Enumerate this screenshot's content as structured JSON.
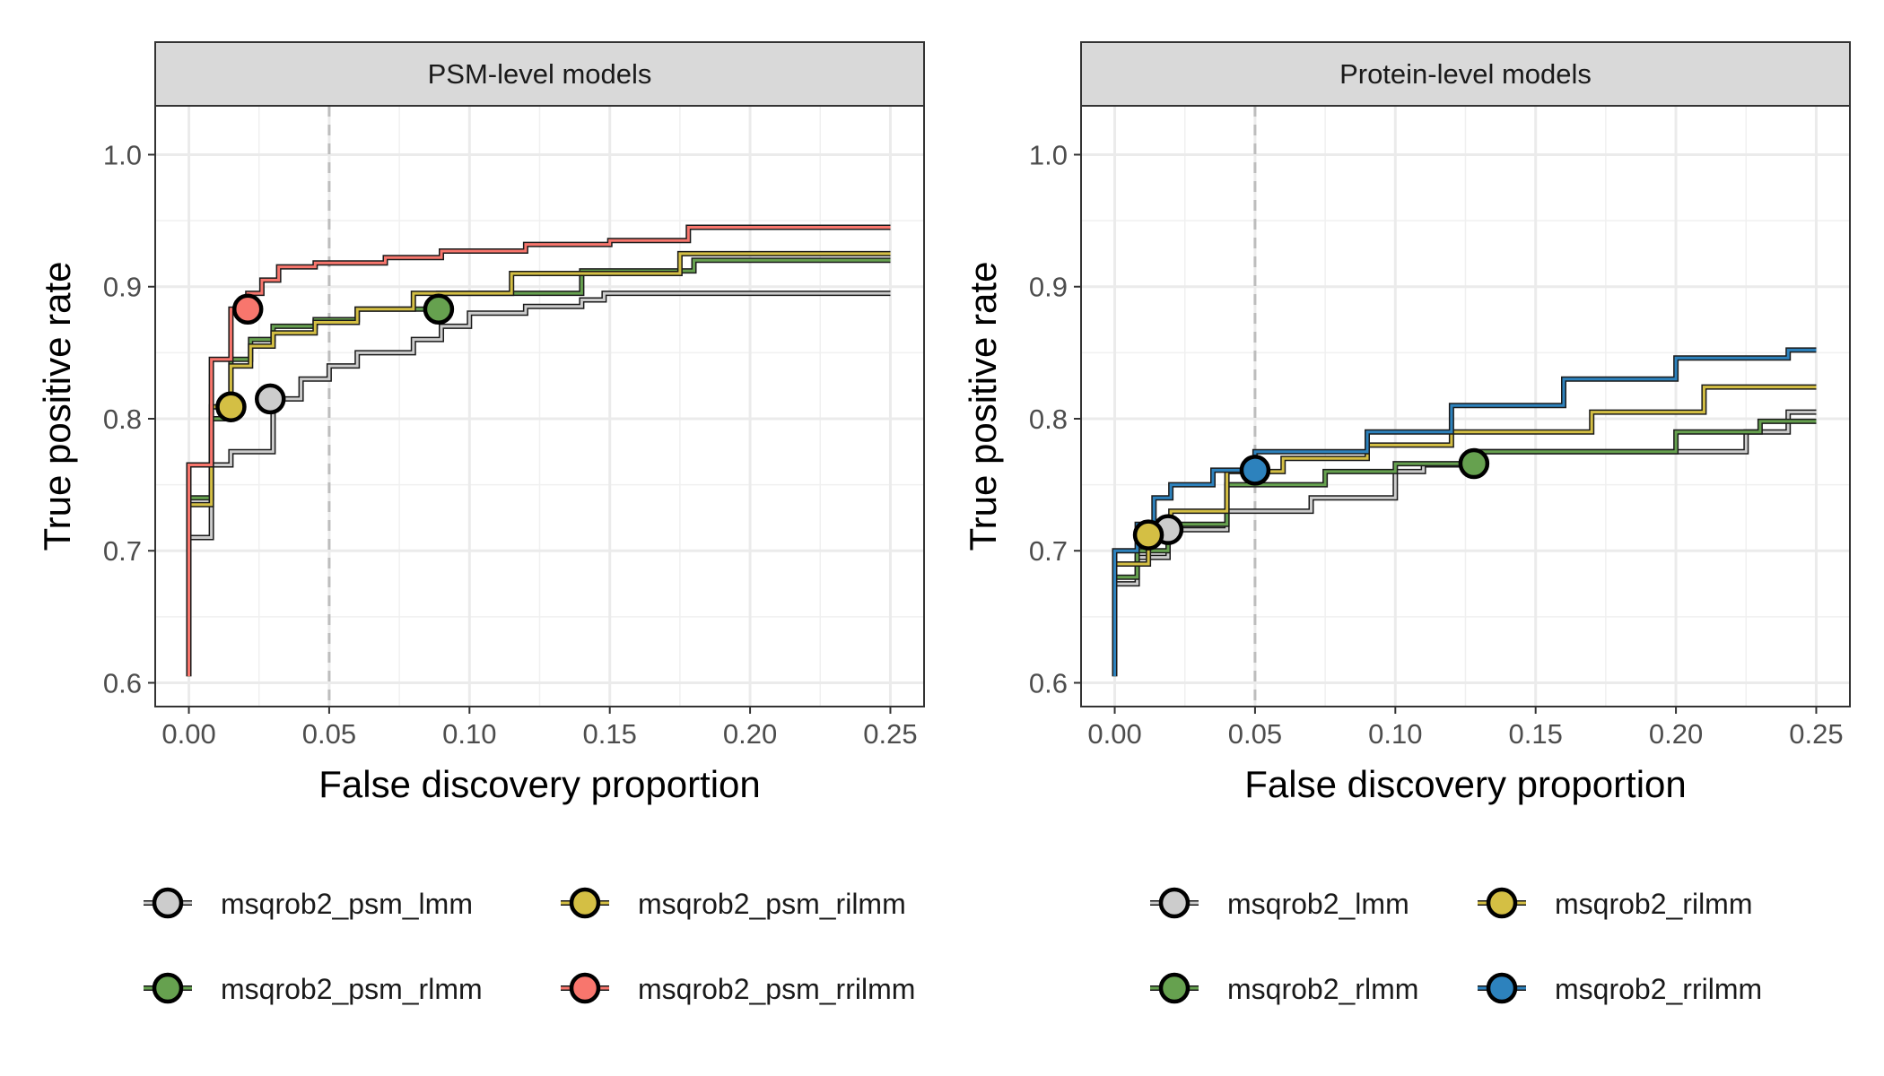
{
  "chart_data": [
    {
      "type": "line",
      "panel_title": "PSM-level models",
      "xlabel": "False discovery proportion",
      "ylabel": "True positive rate",
      "xlim": [
        -0.012,
        0.262
      ],
      "ylim": [
        0.582,
        1.037
      ],
      "xticks": [
        0.0,
        0.05,
        0.1,
        0.15,
        0.2,
        0.25
      ],
      "xtick_labels": [
        "0.00",
        "0.05",
        "0.10",
        "0.15",
        "0.20",
        "0.25"
      ],
      "yticks": [
        0.6,
        0.7,
        0.8,
        0.9,
        1.0
      ],
      "ytick_labels": [
        "0.6",
        "0.7",
        "0.8",
        "0.9",
        "1.0"
      ],
      "reference_line_x": 0.05,
      "grid": true,
      "series": [
        {
          "name": "msqrob2_psm_lmm",
          "color": "#CCCCCC",
          "marker": [
            0.029,
            0.815
          ],
          "x": [
            0.0,
            0.0,
            0.0,
            0.008,
            0.008,
            0.015,
            0.015,
            0.03,
            0.03,
            0.04,
            0.04,
            0.05,
            0.05,
            0.06,
            0.06,
            0.08,
            0.08,
            0.09,
            0.09,
            0.1,
            0.1,
            0.12,
            0.12,
            0.14,
            0.14,
            0.148,
            0.148,
            0.25
          ],
          "y": [
            0.605,
            0.71,
            0.71,
            0.71,
            0.765,
            0.765,
            0.775,
            0.775,
            0.815,
            0.815,
            0.83,
            0.83,
            0.84,
            0.84,
            0.85,
            0.85,
            0.86,
            0.86,
            0.87,
            0.87,
            0.88,
            0.88,
            0.885,
            0.885,
            0.89,
            0.89,
            0.895,
            0.895
          ]
        },
        {
          "name": "msqrob2_psm_rlmm",
          "color": "#66A14F",
          "marker": [
            0.089,
            0.883
          ],
          "x": [
            0.0,
            0.0,
            0.0,
            0.008,
            0.008,
            0.015,
            0.015,
            0.022,
            0.022,
            0.03,
            0.03,
            0.045,
            0.045,
            0.06,
            0.06,
            0.089,
            0.089,
            0.14,
            0.14,
            0.18,
            0.18,
            0.25
          ],
          "y": [
            0.605,
            0.74,
            0.74,
            0.74,
            0.8,
            0.8,
            0.845,
            0.845,
            0.86,
            0.86,
            0.87,
            0.87,
            0.875,
            0.875,
            0.883,
            0.883,
            0.895,
            0.895,
            0.912,
            0.912,
            0.92,
            0.92
          ]
        },
        {
          "name": "msqrob2_psm_rilmm",
          "color": "#D4BF44",
          "marker": [
            0.015,
            0.809
          ],
          "x": [
            0.0,
            0.0,
            0.0,
            0.008,
            0.008,
            0.015,
            0.015,
            0.022,
            0.022,
            0.03,
            0.03,
            0.045,
            0.045,
            0.06,
            0.06,
            0.08,
            0.08,
            0.115,
            0.115,
            0.175,
            0.175,
            0.25
          ],
          "y": [
            0.605,
            0.735,
            0.735,
            0.735,
            0.809,
            0.809,
            0.84,
            0.84,
            0.855,
            0.855,
            0.865,
            0.865,
            0.873,
            0.873,
            0.883,
            0.883,
            0.895,
            0.895,
            0.91,
            0.91,
            0.925,
            0.925
          ]
        },
        {
          "name": "msqrob2_psm_rrilmm",
          "color": "#F8766D",
          "marker": [
            0.021,
            0.883
          ],
          "x": [
            0.0,
            0.0,
            0.0,
            0.008,
            0.008,
            0.015,
            0.015,
            0.021,
            0.021,
            0.026,
            0.026,
            0.032,
            0.032,
            0.045,
            0.045,
            0.07,
            0.07,
            0.09,
            0.09,
            0.12,
            0.12,
            0.15,
            0.15,
            0.178,
            0.178,
            0.25
          ],
          "y": [
            0.605,
            0.765,
            0.765,
            0.765,
            0.845,
            0.845,
            0.883,
            0.883,
            0.895,
            0.895,
            0.905,
            0.905,
            0.915,
            0.915,
            0.918,
            0.918,
            0.922,
            0.922,
            0.927,
            0.927,
            0.932,
            0.932,
            0.935,
            0.935,
            0.945,
            0.945
          ]
        }
      ]
    },
    {
      "type": "line",
      "panel_title": "Protein-level models",
      "xlabel": "False discovery proportion",
      "ylabel": "True positive rate",
      "xlim": [
        -0.012,
        0.262
      ],
      "ylim": [
        0.582,
        1.037
      ],
      "xticks": [
        0.0,
        0.05,
        0.1,
        0.15,
        0.2,
        0.25
      ],
      "xtick_labels": [
        "0.00",
        "0.05",
        "0.10",
        "0.15",
        "0.20",
        "0.25"
      ],
      "yticks": [
        0.6,
        0.7,
        0.8,
        0.9,
        1.0
      ],
      "ytick_labels": [
        "0.6",
        "0.7",
        "0.8",
        "0.9",
        "1.0"
      ],
      "reference_line_x": 0.05,
      "grid": true,
      "series": [
        {
          "name": "msqrob2_lmm",
          "color": "#CCCCCC",
          "marker": [
            0.019,
            0.716
          ],
          "x": [
            0.0,
            0.0,
            0.0,
            0.008,
            0.008,
            0.019,
            0.019,
            0.04,
            0.04,
            0.07,
            0.07,
            0.1,
            0.1,
            0.11,
            0.11,
            0.13,
            0.13,
            0.225,
            0.225,
            0.24,
            0.24,
            0.25
          ],
          "y": [
            0.605,
            0.675,
            0.675,
            0.675,
            0.695,
            0.695,
            0.716,
            0.716,
            0.73,
            0.73,
            0.74,
            0.74,
            0.76,
            0.76,
            0.765,
            0.765,
            0.775,
            0.775,
            0.79,
            0.79,
            0.805,
            0.805
          ]
        },
        {
          "name": "msqrob2_rlmm",
          "color": "#66A14F",
          "marker": [
            0.128,
            0.766
          ],
          "x": [
            0.0,
            0.0,
            0.0,
            0.008,
            0.008,
            0.019,
            0.019,
            0.04,
            0.04,
            0.075,
            0.075,
            0.1,
            0.1,
            0.128,
            0.128,
            0.2,
            0.2,
            0.23,
            0.23,
            0.25
          ],
          "y": [
            0.605,
            0.68,
            0.68,
            0.68,
            0.7,
            0.7,
            0.72,
            0.72,
            0.75,
            0.75,
            0.76,
            0.76,
            0.766,
            0.766,
            0.775,
            0.775,
            0.79,
            0.79,
            0.798,
            0.798
          ]
        },
        {
          "name": "msqrob2_rilmm",
          "color": "#D4BF44",
          "marker": [
            0.012,
            0.712
          ],
          "x": [
            0.0,
            0.0,
            0.0,
            0.012,
            0.012,
            0.02,
            0.02,
            0.04,
            0.04,
            0.06,
            0.06,
            0.09,
            0.09,
            0.12,
            0.12,
            0.17,
            0.17,
            0.21,
            0.21,
            0.25
          ],
          "y": [
            0.605,
            0.69,
            0.69,
            0.69,
            0.712,
            0.712,
            0.73,
            0.73,
            0.76,
            0.76,
            0.77,
            0.77,
            0.78,
            0.78,
            0.79,
            0.79,
            0.805,
            0.805,
            0.824,
            0.824
          ]
        },
        {
          "name": "msqrob2_rrilmm",
          "color": "#2D82BD",
          "marker": [
            0.05,
            0.761
          ],
          "x": [
            0.0,
            0.0,
            0.0,
            0.008,
            0.008,
            0.014,
            0.014,
            0.02,
            0.02,
            0.035,
            0.035,
            0.05,
            0.05,
            0.09,
            0.09,
            0.12,
            0.12,
            0.16,
            0.16,
            0.2,
            0.2,
            0.24,
            0.24,
            0.25
          ],
          "y": [
            0.605,
            0.7,
            0.7,
            0.7,
            0.72,
            0.72,
            0.74,
            0.74,
            0.75,
            0.75,
            0.761,
            0.761,
            0.775,
            0.775,
            0.79,
            0.79,
            0.81,
            0.81,
            0.83,
            0.83,
            0.846,
            0.846,
            0.852,
            0.852
          ]
        }
      ]
    }
  ]
}
